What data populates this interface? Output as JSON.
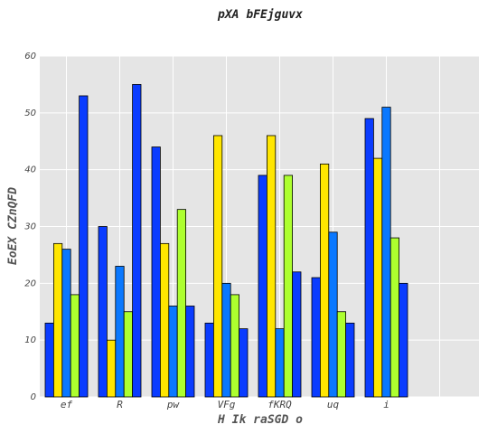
{
  "chart_data": {
    "type": "bar",
    "title": "pXA bFEjguvx",
    "xlabel": "H Ik  raSGD o",
    "ylabel": "EoEX CZnQFD",
    "ylim": [
      0,
      60
    ],
    "yticks": [
      0,
      10,
      20,
      30,
      40,
      50,
      60
    ],
    "categories": [
      "ef",
      "R",
      "pw",
      "VFg",
      "fKRQ",
      "uq",
      "i"
    ],
    "grid": true,
    "colors": [
      "#0a3cff",
      "#ffe600",
      "#0a78ff",
      "#adff2f",
      "#0a3cff"
    ],
    "series": [
      {
        "values": [
          13,
          30,
          44,
          13,
          39,
          21,
          49
        ]
      },
      {
        "values": [
          27,
          10,
          27,
          46,
          46,
          41,
          42
        ]
      },
      {
        "values": [
          26,
          23,
          16,
          20,
          12,
          29,
          51
        ]
      },
      {
        "values": [
          18,
          15,
          33,
          18,
          39,
          15,
          28
        ]
      },
      {
        "values": [
          53,
          55,
          16,
          12,
          22,
          13,
          20
        ]
      }
    ]
  }
}
